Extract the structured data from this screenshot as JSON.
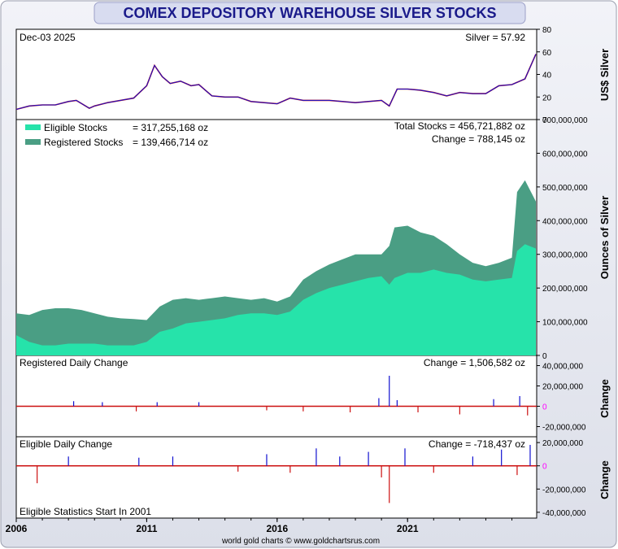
{
  "header": {
    "title": "COMEX DEPOSITORY WAREHOUSE SILVER STOCKS"
  },
  "footer": {
    "credit": "world gold charts © www.goldchartsrus.com"
  },
  "colors": {
    "eligible": "#26e3aa",
    "registered": "#4a9e84",
    "price_up": "#1010d0",
    "price_down": "#cc1010",
    "title_bg": "#d8dcf0",
    "title_text": "#1a1a8a",
    "zero_label": "#ff00ff"
  },
  "chart_data": [
    {
      "id": "price",
      "type": "line",
      "header_left": "Dec-03  2025",
      "header_right": "Silver = 57.92",
      "ylabel": "US$ Silver",
      "ylim": [
        0,
        80
      ],
      "yticks": [
        "0",
        "20",
        "40",
        "60",
        "80"
      ],
      "x": [
        2006.0,
        2006.5,
        2007.0,
        2007.5,
        2008.0,
        2008.3,
        2008.8,
        2009.0,
        2009.5,
        2010.0,
        2010.5,
        2011.0,
        2011.3,
        2011.6,
        2011.9,
        2012.3,
        2012.7,
        2013.0,
        2013.5,
        2014.0,
        2014.5,
        2015.0,
        2015.5,
        2016.0,
        2016.5,
        2017.0,
        2017.5,
        2018.0,
        2018.5,
        2019.0,
        2019.5,
        2020.0,
        2020.3,
        2020.6,
        2021.0,
        2021.5,
        2022.0,
        2022.5,
        2023.0,
        2023.5,
        2024.0,
        2024.5,
        2025.0,
        2025.5,
        2025.92
      ],
      "values": [
        9,
        12,
        13,
        13,
        16,
        17,
        10,
        12,
        15,
        17,
        19,
        30,
        48,
        38,
        32,
        34,
        30,
        31,
        21,
        20,
        20,
        16,
        15,
        14,
        19,
        17,
        17,
        17,
        16,
        15,
        16,
        17,
        12,
        27,
        27,
        26,
        24,
        21,
        24,
        23,
        23,
        30,
        31,
        36,
        57.92
      ]
    },
    {
      "id": "stocks",
      "type": "area",
      "header_right_1": "Total Stocks = 456,721,882 oz",
      "header_right_2": "Change = 788,145 oz",
      "legend": [
        {
          "label": "Eligible Stocks",
          "value": "= 317,255,168 oz"
        },
        {
          "label": "Registered Stocks",
          "value": "= 139,466,714 oz"
        }
      ],
      "ylabel": "Ounces of Silver",
      "ylim": [
        0,
        700000000
      ],
      "yticks": [
        "0",
        "100,000,000",
        "200,000,000",
        "300,000,000",
        "400,000,000",
        "500,000,000",
        "600,000,000",
        "700,000,000"
      ],
      "x": [
        2006.0,
        2006.5,
        2007.0,
        2007.5,
        2008.0,
        2008.5,
        2009.0,
        2009.5,
        2010.0,
        2010.5,
        2011.0,
        2011.5,
        2012.0,
        2012.5,
        2013.0,
        2013.5,
        2014.0,
        2014.5,
        2015.0,
        2015.5,
        2016.0,
        2016.5,
        2017.0,
        2017.5,
        2018.0,
        2018.5,
        2019.0,
        2019.5,
        2020.0,
        2020.3,
        2020.5,
        2021.0,
        2021.5,
        2022.0,
        2022.5,
        2023.0,
        2023.5,
        2024.0,
        2024.5,
        2025.0,
        2025.2,
        2025.5,
        2025.92
      ],
      "series": [
        {
          "name": "Eligible Stocks",
          "values": [
            60000000,
            40000000,
            30000000,
            30000000,
            35000000,
            35000000,
            35000000,
            30000000,
            30000000,
            30000000,
            40000000,
            70000000,
            80000000,
            95000000,
            100000000,
            105000000,
            110000000,
            120000000,
            125000000,
            125000000,
            120000000,
            130000000,
            165000000,
            185000000,
            200000000,
            210000000,
            220000000,
            230000000,
            235000000,
            210000000,
            230000000,
            245000000,
            245000000,
            255000000,
            245000000,
            240000000,
            225000000,
            220000000,
            225000000,
            230000000,
            310000000,
            330000000,
            317255168
          ]
        },
        {
          "name": "Registered Stocks",
          "values": [
            65000000,
            80000000,
            105000000,
            110000000,
            105000000,
            100000000,
            90000000,
            85000000,
            80000000,
            78000000,
            65000000,
            75000000,
            85000000,
            75000000,
            65000000,
            65000000,
            65000000,
            50000000,
            40000000,
            45000000,
            40000000,
            45000000,
            60000000,
            65000000,
            70000000,
            75000000,
            80000000,
            70000000,
            65000000,
            115000000,
            150000000,
            140000000,
            120000000,
            100000000,
            85000000,
            60000000,
            50000000,
            45000000,
            50000000,
            60000000,
            175000000,
            190000000,
            139466714
          ]
        }
      ]
    },
    {
      "id": "registered_change",
      "type": "bar",
      "title": "Registered Daily Change",
      "header_right": "Change = 1,506,582 oz",
      "ylabel": "Change",
      "ylim": [
        -30000000,
        50000000
      ],
      "yticks": [
        "-20,000,000",
        "0",
        "20,000,000",
        "40,000,000"
      ],
      "x": [
        2008.2,
        2009.3,
        2010.6,
        2011.4,
        2013.0,
        2015.6,
        2017.0,
        2018.8,
        2019.9,
        2020.3,
        2020.6,
        2021.4,
        2023.0,
        2024.3,
        2025.3,
        2025.6
      ],
      "values": [
        5000000,
        4000000,
        -5000000,
        4000000,
        4000000,
        -4000000,
        -5000000,
        -6000000,
        8000000,
        30000000,
        6000000,
        -6000000,
        -8000000,
        7000000,
        10000000,
        -9000000
      ]
    },
    {
      "id": "eligible_change",
      "type": "bar",
      "title": "Eligible Daily Change",
      "header_right": "Change = -718,437 oz",
      "ylabel": "Change",
      "ylim": [
        -45000000,
        25000000
      ],
      "yticks": [
        "-40,000,000",
        "-20,000,000",
        "0",
        "20,000,000"
      ],
      "footnote": "Eligible Statistics Start In 2001",
      "x": [
        2006.8,
        2008.0,
        2010.7,
        2012.0,
        2014.5,
        2015.6,
        2016.5,
        2017.5,
        2018.4,
        2019.5,
        2020.0,
        2020.3,
        2020.9,
        2022.0,
        2023.5,
        2024.6,
        2025.2,
        2025.7
      ],
      "values": [
        -15000000,
        8000000,
        7000000,
        8000000,
        -5000000,
        10000000,
        -6000000,
        15000000,
        8000000,
        12000000,
        -10000000,
        -32000000,
        15000000,
        -6000000,
        8000000,
        14000000,
        -8000000,
        18000000
      ]
    }
  ],
  "x_axis": {
    "ticks": [
      "2006",
      "2011",
      "2016",
      "2021"
    ],
    "values": [
      2006,
      2011,
      2016,
      2021
    ],
    "range": [
      2006,
      2025.95
    ]
  }
}
